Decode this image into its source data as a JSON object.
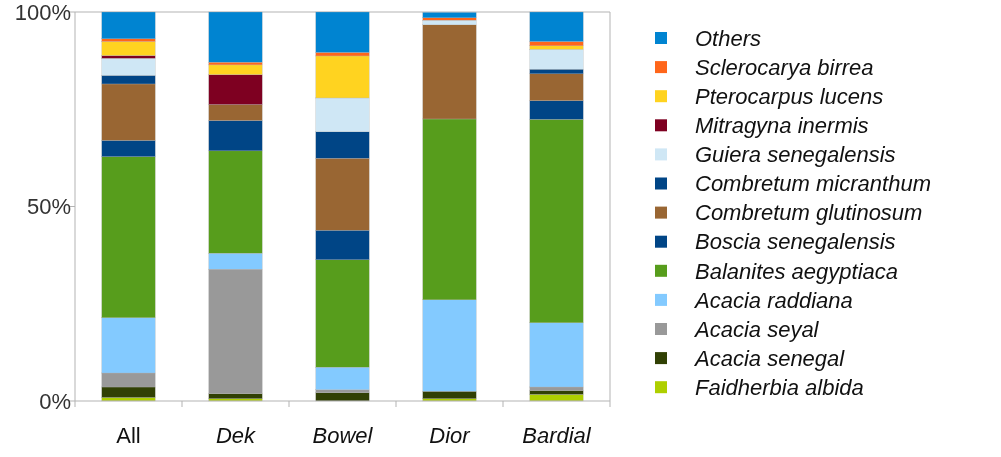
{
  "chart_data": {
    "type": "bar",
    "stacked": true,
    "categories": [
      "All",
      "Dek",
      "Bowel",
      "Dior",
      "Bardial"
    ],
    "ylim": [
      0,
      100
    ],
    "yticks": [
      {
        "value": 0,
        "label": "0%"
      },
      {
        "value": 50,
        "label": "50%"
      },
      {
        "value": 100,
        "label": "100%"
      }
    ],
    "grid": false,
    "legend": "right",
    "series": [
      {
        "name": "Faidherbia albida",
        "color": "#aecf00",
        "values": [
          0.9,
          0.6,
          0,
          0.6,
          1.7
        ]
      },
      {
        "name": "Acacia senegal",
        "color": "#314004",
        "values": [
          2.7,
          1.3,
          2.1,
          1.9,
          1.0
        ]
      },
      {
        "name": "Acacia seyal",
        "color": "#999999",
        "values": [
          3.6,
          32.0,
          0.8,
          null,
          0.9
        ]
      },
      {
        "name": "Acacia raddiana",
        "color": "#83caff",
        "values": [
          14.2,
          4.1,
          5.8,
          23.5,
          16.5
        ]
      },
      {
        "name": "Balanites aegyptiaca",
        "color": "#579d1c",
        "values": [
          41.4,
          26.3,
          27.6,
          46.5,
          52.3
        ]
      },
      {
        "name": "Boscia senegalensis",
        "color": "#004586",
        "values": [
          4.2,
          7.8,
          7.6,
          0,
          4.8
        ]
      },
      {
        "name": "Combretum glutinosum",
        "color": "#996633",
        "values": [
          14.5,
          4.1,
          18.5,
          24.2,
          6.9
        ]
      },
      {
        "name": "Combretum micranthum",
        "color": "#004586",
        "values": [
          2.2,
          0,
          6.8,
          0,
          1.2
        ]
      },
      {
        "name": "Guiera senegalensis",
        "color": "#cfe7f5",
        "values": [
          4.4,
          0,
          8.7,
          1.2,
          5.1
        ]
      },
      {
        "name": "Mitragyna inermis",
        "color": "#7e0021",
        "values": [
          0.7,
          7.7,
          0,
          0,
          0
        ]
      },
      {
        "name": "Pterocarpus lucens",
        "color": "#ffd320",
        "values": [
          3.6,
          2.5,
          10.8,
          0,
          0.9
        ]
      },
      {
        "name": "Sclerocarya birrea",
        "color": "#ff661a",
        "values": [
          0.7,
          0.7,
          0.9,
          0.6,
          1.1
        ]
      },
      {
        "name": "Others",
        "color": "#0084d1",
        "values": [
          6.9,
          12.9,
          10.4,
          1.4,
          7.6
        ]
      }
    ]
  }
}
